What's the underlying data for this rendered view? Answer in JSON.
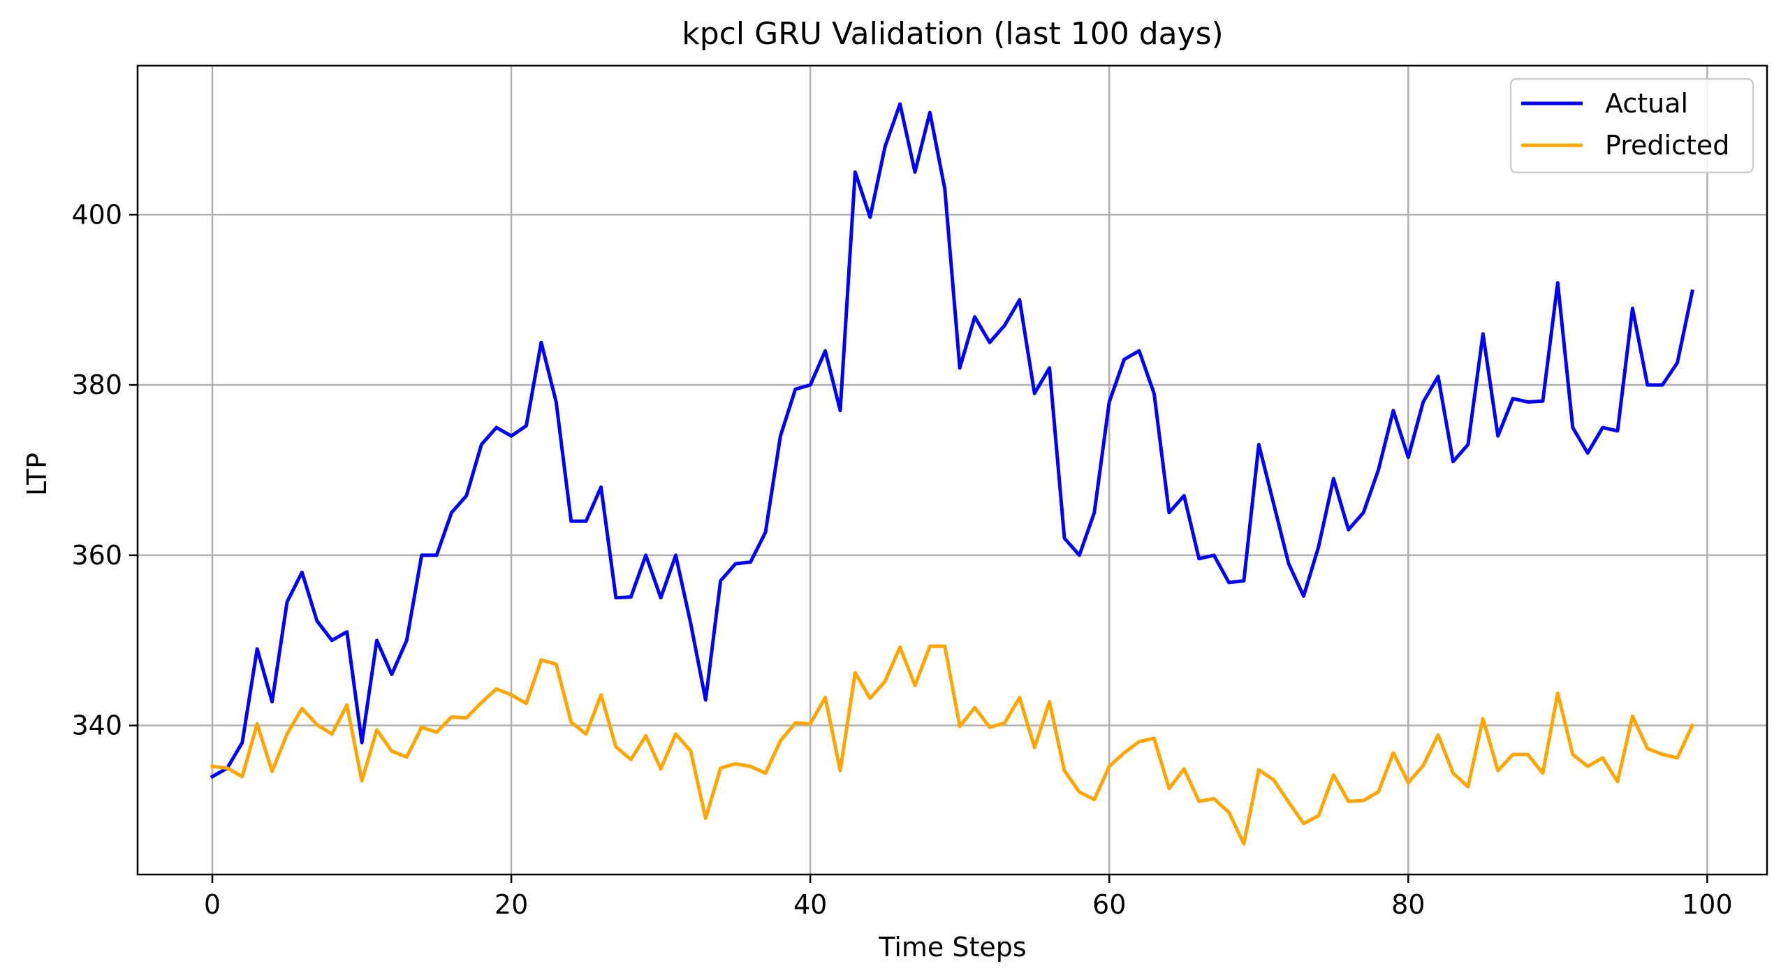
{
  "chart_data": {
    "type": "line",
    "title": "kpcl GRU Validation (last 100 days)",
    "xlabel": "Time Steps",
    "ylabel": "LTP",
    "xlim": [
      -5,
      104
    ],
    "ylim": [
      322.5,
      417.5
    ],
    "xticks": [
      0,
      20,
      40,
      60,
      80,
      100
    ],
    "yticks": [
      340,
      360,
      380,
      400
    ],
    "grid": true,
    "legend_position": "top-right",
    "x": [
      0,
      1,
      2,
      3,
      4,
      5,
      6,
      7,
      8,
      9,
      10,
      11,
      12,
      13,
      14,
      15,
      16,
      17,
      18,
      19,
      20,
      21,
      22,
      23,
      24,
      25,
      26,
      27,
      28,
      29,
      30,
      31,
      32,
      33,
      34,
      35,
      36,
      37,
      38,
      39,
      40,
      41,
      42,
      43,
      44,
      45,
      46,
      47,
      48,
      49,
      50,
      51,
      52,
      53,
      54,
      55,
      56,
      57,
      58,
      59,
      60,
      61,
      62,
      63,
      64,
      65,
      66,
      67,
      68,
      69,
      70,
      71,
      72,
      73,
      74,
      75,
      76,
      77,
      78,
      79,
      80,
      81,
      82,
      83,
      84,
      85,
      86,
      87,
      88,
      89,
      90,
      91,
      92,
      93,
      94,
      95,
      96,
      97,
      98,
      99
    ],
    "series": [
      {
        "name": "Actual",
        "color": "#0000ff",
        "values": [
          334,
          335,
          338,
          349,
          342.8,
          354.5,
          358,
          352.3,
          350,
          351,
          338,
          350,
          346,
          350,
          360,
          360,
          365,
          367,
          373,
          375,
          374,
          375.2,
          385,
          378,
          364,
          364,
          368,
          355,
          355.1,
          360,
          355,
          360,
          352,
          343,
          357,
          359,
          359.2,
          362.7,
          374,
          379.5,
          380,
          384,
          377,
          405,
          399.7,
          408,
          413,
          405,
          412,
          403,
          382,
          388,
          385,
          387,
          390,
          379,
          382,
          362,
          360,
          365,
          378,
          383,
          384,
          379,
          365,
          367,
          359.6,
          360,
          356.8,
          357,
          373,
          366,
          359,
          355.2,
          361,
          369,
          363,
          365,
          370,
          377,
          371.5,
          378,
          381,
          371,
          373,
          386,
          374,
          378.4,
          378,
          378.1,
          392,
          375,
          372,
          375,
          374.6,
          389,
          380,
          380,
          382.6,
          391
        ]
      },
      {
        "name": "Predicted",
        "color": "#ffa500",
        "values": [
          335.2,
          335,
          334,
          340.2,
          334.6,
          339,
          342,
          340.1,
          339,
          342.4,
          333.5,
          339.5,
          337,
          336.3,
          339.8,
          339.2,
          341,
          340.9,
          342.7,
          344.3,
          343.6,
          342.6,
          347.7,
          347.2,
          340.4,
          339,
          343.6,
          337.5,
          336,
          338.8,
          334.9,
          339,
          337,
          329.1,
          335,
          335.5,
          335.2,
          334.4,
          338.2,
          340.3,
          340.2,
          343.3,
          334.7,
          346.2,
          343.2,
          345.2,
          349.2,
          344.7,
          349.3,
          349.3,
          339.9,
          342.1,
          339.8,
          340.3,
          343.3,
          337.4,
          342.8,
          334.7,
          332.2,
          331.3,
          335.2,
          336.8,
          338.1,
          338.5,
          332.6,
          334.9,
          331.1,
          331.4,
          329.8,
          326.1,
          334.8,
          333.6,
          331,
          328.5,
          329.4,
          334.2,
          331.1,
          331.2,
          332.2,
          336.8,
          333.3,
          335.3,
          338.9,
          334.4,
          332.8,
          340.8,
          334.7,
          336.6,
          336.6,
          334.4,
          343.8,
          336.6,
          335.2,
          336.2,
          333.4,
          341.1,
          337.3,
          336.6,
          336.2,
          340
        ]
      }
    ]
  }
}
